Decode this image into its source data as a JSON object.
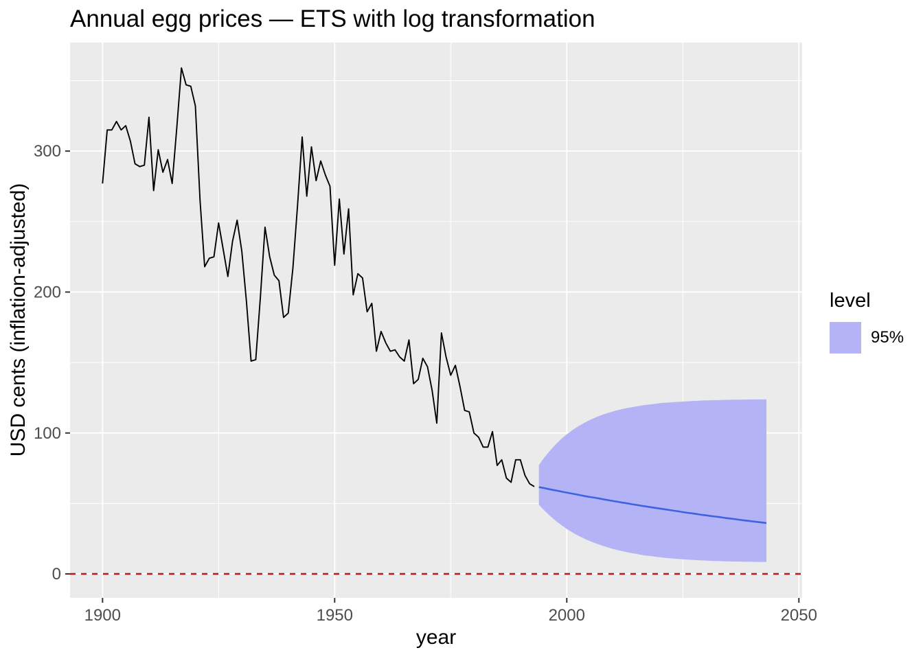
{
  "title": "Annual egg prices — ETS with log transformation",
  "chart_data": {
    "type": "line",
    "title": "Annual egg prices — ETS with log transformation",
    "xlabel": "year",
    "ylabel": "USD cents (inflation-adjusted)",
    "xlim": [
      1893,
      2050.7
    ],
    "ylim": [
      -17,
      377
    ],
    "x_ticks": [
      1900,
      1950,
      2000,
      2050
    ],
    "x_minor_ticks": [
      1925,
      1975,
      2025
    ],
    "y_ticks": [
      0,
      100,
      200,
      300
    ],
    "y_minor_ticks": [
      50,
      150,
      250,
      350
    ],
    "grid": true,
    "legend": {
      "title": "level",
      "position": "right",
      "entries": [
        {
          "label": "95%",
          "color": "#B3B3F5"
        }
      ]
    },
    "reference_line": {
      "y": 0,
      "style": "dashed",
      "color": "#B22222"
    },
    "series": [
      {
        "name": "historical",
        "type": "line",
        "color": "#000000",
        "x_start": 1900,
        "x_step": 1,
        "values": [
          277,
          315,
          315,
          321,
          315,
          318,
          307,
          291,
          289,
          290,
          324,
          272,
          301,
          285,
          294,
          277,
          317,
          359,
          347,
          346,
          332,
          265,
          218,
          224,
          225,
          249,
          230,
          211,
          236,
          251,
          229,
          193,
          151,
          152,
          196,
          246,
          225,
          212,
          208,
          182,
          185,
          217,
          261,
          310,
          268,
          303,
          279,
          293,
          283,
          275,
          219,
          266,
          227,
          259,
          198,
          213,
          210,
          186,
          192,
          158,
          172,
          164,
          158,
          159,
          154,
          151,
          166,
          135,
          138,
          153,
          147,
          130,
          107,
          171,
          154,
          141,
          148,
          133,
          116,
          115,
          100,
          97,
          90,
          90,
          101,
          77,
          81,
          68,
          65,
          81,
          81,
          70,
          64,
          62
        ]
      },
      {
        "name": "forecast-mean",
        "type": "line",
        "color": "#3E63E0",
        "x_start": 1994,
        "x_step": 1,
        "values": [
          61.6,
          61.0,
          60.3,
          59.6,
          59.0,
          58.3,
          57.7,
          57.1,
          56.5,
          55.8,
          55.2,
          54.6,
          54.1,
          53.5,
          52.9,
          52.3,
          51.7,
          51.2,
          50.6,
          50.1,
          49.5,
          49.0,
          48.4,
          47.9,
          47.4,
          46.9,
          46.4,
          45.9,
          45.4,
          44.9,
          44.4,
          43.9,
          43.4,
          43.0,
          42.5,
          42.0,
          41.6,
          41.1,
          40.7,
          40.3,
          39.8,
          39.4,
          39.0,
          38.5,
          38.1,
          37.7,
          37.3,
          36.9,
          36.5,
          36.1
        ]
      },
      {
        "name": "forecast-95-interval",
        "type": "ribbon",
        "fill": "#B3B3F5",
        "level": "95%",
        "x_start": 1994,
        "x_step": 1,
        "upper": [
          77.2,
          81.9,
          85.9,
          89.7,
          93.2,
          96.3,
          99.1,
          101.5,
          103.8,
          105.8,
          107.6,
          109.3,
          110.7,
          112.1,
          113.3,
          114.3,
          115.3,
          116.2,
          117.0,
          117.7,
          118.3,
          118.9,
          119.4,
          119.9,
          120.3,
          120.7,
          121.1,
          121.4,
          121.6,
          121.9,
          122.1,
          122.3,
          122.5,
          122.7,
          122.8,
          123.0,
          123.1,
          123.2,
          123.3,
          123.4,
          123.5,
          123.5,
          123.6,
          123.6,
          123.7,
          123.7,
          123.8,
          123.8,
          123.8,
          123.9
        ],
        "lower": [
          49.1,
          45.6,
          42.4,
          39.4,
          36.7,
          34.3,
          31.9,
          29.9,
          28.0,
          26.3,
          24.7,
          23.3,
          22.0,
          20.8,
          19.7,
          18.7,
          17.7,
          16.9,
          16.1,
          15.4,
          14.8,
          14.2,
          13.6,
          13.1,
          12.7,
          12.2,
          11.9,
          11.5,
          11.2,
          10.9,
          10.6,
          10.4,
          10.2,
          10.0,
          9.8,
          9.6,
          9.5,
          9.3,
          9.2,
          9.1,
          9.0,
          8.9,
          8.8,
          8.8,
          8.7,
          8.6,
          8.6,
          8.5,
          8.5,
          8.5
        ]
      }
    ]
  },
  "colors": {
    "panel_background": "#EBEBEB",
    "grid": "#FFFFFF",
    "tick_label": "#4D4D4D",
    "tick_mark": "#333333",
    "historical_line": "#000000",
    "forecast_line": "#3E63E0",
    "ribbon_fill": "#B3B3F5",
    "zero_line": "#B22222"
  }
}
